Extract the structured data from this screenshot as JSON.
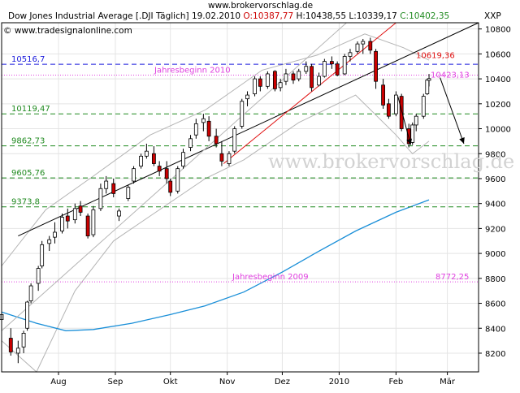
{
  "site_title": "www.brokervorschlag.de",
  "watermark": "www.brokervorschlag.de",
  "header": {
    "instrument": "Dow Jones Industrial Average [.DJI  Täglich] 19.02.2010",
    "open": "O:10387,77",
    "high": "H:10438,55",
    "low": "L:10339,17",
    "close": "C:10402,35",
    "source": "www.tradesignalonline.com",
    "copyright_symbol": "©"
  },
  "colors": {
    "background": "#ffffff",
    "grid": "#e4e4e4",
    "axis": "#000000",
    "candle_up": "#ffffff",
    "candle_down": "#cc0000",
    "candle_border": "#000000",
    "moving_average": "#1a8fd8",
    "bollinger": "#b4b4b4",
    "resistance_line": "#1a1adc",
    "support_line": "#1f8a1f",
    "start_line": "#e040e0",
    "trend_red": "#e01010",
    "trend_black": "#000000",
    "open_label": "#cc0000",
    "close_label": "#1f8a1f"
  },
  "chart_data": {
    "type": "candlestick",
    "title": "Dow Jones Industrial Average [.DJI Täglich]",
    "y_axis_label": "XXP",
    "y_axis_side": "right",
    "ylim": [
      8050,
      10850
    ],
    "y_ticks": [
      8200,
      8400,
      8600,
      8800,
      9000,
      9200,
      9400,
      9600,
      9800,
      10000,
      10200,
      10400,
      10600,
      10800
    ],
    "x_labels": [
      "Aug",
      "Sep",
      "Okt",
      "Nov",
      "Dez",
      "2010",
      "Feb",
      "Mär"
    ],
    "x_label_dates": [
      "2009-08-01",
      "2009-09-01",
      "2009-10-01",
      "2009-11-01",
      "2009-12-01",
      "2010-01-01",
      "2010-02-01",
      "2010-03-01"
    ],
    "x_range": [
      "2009-07-01",
      "2010-03-18"
    ],
    "grid": true,
    "candles": [
      {
        "date": "2009-07-01",
        "o": 8470,
        "h": 8550,
        "l": 8420,
        "c": 8510
      },
      {
        "date": "2009-07-06",
        "o": 8320,
        "h": 8400,
        "l": 8180,
        "c": 8210
      },
      {
        "date": "2009-07-10",
        "o": 8200,
        "h": 8300,
        "l": 8120,
        "c": 8240
      },
      {
        "date": "2009-07-13",
        "o": 8250,
        "h": 8380,
        "l": 8200,
        "c": 8360
      },
      {
        "date": "2009-07-15",
        "o": 8400,
        "h": 8620,
        "l": 8380,
        "c": 8610
      },
      {
        "date": "2009-07-17",
        "o": 8620,
        "h": 8760,
        "l": 8600,
        "c": 8740
      },
      {
        "date": "2009-07-21",
        "o": 8760,
        "h": 8900,
        "l": 8700,
        "c": 8880
      },
      {
        "date": "2009-07-23",
        "o": 8900,
        "h": 9100,
        "l": 8880,
        "c": 9070
      },
      {
        "date": "2009-07-27",
        "o": 9080,
        "h": 9140,
        "l": 9020,
        "c": 9110
      },
      {
        "date": "2009-07-30",
        "o": 9130,
        "h": 9250,
        "l": 9080,
        "c": 9170
      },
      {
        "date": "2009-08-03",
        "o": 9180,
        "h": 9320,
        "l": 9160,
        "c": 9290
      },
      {
        "date": "2009-08-06",
        "o": 9300,
        "h": 9360,
        "l": 9200,
        "c": 9260
      },
      {
        "date": "2009-08-10",
        "o": 9270,
        "h": 9400,
        "l": 9240,
        "c": 9360
      },
      {
        "date": "2009-08-13",
        "o": 9380,
        "h": 9420,
        "l": 9300,
        "c": 9330
      },
      {
        "date": "2009-08-17",
        "o": 9300,
        "h": 9320,
        "l": 9120,
        "c": 9140
      },
      {
        "date": "2009-08-20",
        "o": 9150,
        "h": 9380,
        "l": 9130,
        "c": 9350
      },
      {
        "date": "2009-08-24",
        "o": 9360,
        "h": 9560,
        "l": 9340,
        "c": 9520
      },
      {
        "date": "2009-08-27",
        "o": 9520,
        "h": 9620,
        "l": 9480,
        "c": 9580
      },
      {
        "date": "2009-08-31",
        "o": 9560,
        "h": 9600,
        "l": 9450,
        "c": 9480
      },
      {
        "date": "2009-09-03",
        "o": 9300,
        "h": 9360,
        "l": 9260,
        "c": 9340
      },
      {
        "date": "2009-09-08",
        "o": 9440,
        "h": 9550,
        "l": 9420,
        "c": 9530
      },
      {
        "date": "2009-09-11",
        "o": 9580,
        "h": 9700,
        "l": 9560,
        "c": 9680
      },
      {
        "date": "2009-09-15",
        "o": 9700,
        "h": 9800,
        "l": 9680,
        "c": 9780
      },
      {
        "date": "2009-09-18",
        "o": 9780,
        "h": 9880,
        "l": 9760,
        "c": 9820
      },
      {
        "date": "2009-09-22",
        "o": 9800,
        "h": 9860,
        "l": 9700,
        "c": 9720
      },
      {
        "date": "2009-09-25",
        "o": 9700,
        "h": 9740,
        "l": 9620,
        "c": 9660
      },
      {
        "date": "2009-09-29",
        "o": 9680,
        "h": 9740,
        "l": 9560,
        "c": 9600
      },
      {
        "date": "2009-10-01",
        "o": 9580,
        "h": 9600,
        "l": 9460,
        "c": 9490
      },
      {
        "date": "2009-10-05",
        "o": 9500,
        "h": 9700,
        "l": 9480,
        "c": 9680
      },
      {
        "date": "2009-10-08",
        "o": 9700,
        "h": 9840,
        "l": 9680,
        "c": 9810
      },
      {
        "date": "2009-10-12",
        "o": 9850,
        "h": 9950,
        "l": 9820,
        "c": 9920
      },
      {
        "date": "2009-10-15",
        "o": 9950,
        "h": 10080,
        "l": 9920,
        "c": 10040
      },
      {
        "date": "2009-10-19",
        "o": 10050,
        "h": 10120,
        "l": 9980,
        "c": 10080
      },
      {
        "date": "2009-10-22",
        "o": 10060,
        "h": 10100,
        "l": 9900,
        "c": 9940
      },
      {
        "date": "2009-10-26",
        "o": 9940,
        "h": 10000,
        "l": 9850,
        "c": 9880
      },
      {
        "date": "2009-10-29",
        "o": 9800,
        "h": 9900,
        "l": 9700,
        "c": 9740
      },
      {
        "date": "2009-11-02",
        "o": 9720,
        "h": 9820,
        "l": 9700,
        "c": 9800
      },
      {
        "date": "2009-11-05",
        "o": 9820,
        "h": 10020,
        "l": 9800,
        "c": 10000
      },
      {
        "date": "2009-11-09",
        "o": 10020,
        "h": 10240,
        "l": 10000,
        "c": 10220
      },
      {
        "date": "2009-11-12",
        "o": 10240,
        "h": 10300,
        "l": 10180,
        "c": 10270
      },
      {
        "date": "2009-11-16",
        "o": 10280,
        "h": 10420,
        "l": 10260,
        "c": 10400
      },
      {
        "date": "2009-11-19",
        "o": 10400,
        "h": 10420,
        "l": 10300,
        "c": 10340
      },
      {
        "date": "2009-11-23",
        "o": 10340,
        "h": 10460,
        "l": 10320,
        "c": 10440
      },
      {
        "date": "2009-11-27",
        "o": 10460,
        "h": 10470,
        "l": 10300,
        "c": 10320
      },
      {
        "date": "2009-11-30",
        "o": 10330,
        "h": 10400,
        "l": 10300,
        "c": 10370
      },
      {
        "date": "2009-12-03",
        "o": 10380,
        "h": 10480,
        "l": 10350,
        "c": 10440
      },
      {
        "date": "2009-12-07",
        "o": 10440,
        "h": 10460,
        "l": 10360,
        "c": 10390
      },
      {
        "date": "2009-12-10",
        "o": 10400,
        "h": 10480,
        "l": 10380,
        "c": 10460
      },
      {
        "date": "2009-12-14",
        "o": 10460,
        "h": 10540,
        "l": 10440,
        "c": 10500
      },
      {
        "date": "2009-12-17",
        "o": 10500,
        "h": 10520,
        "l": 10300,
        "c": 10330
      },
      {
        "date": "2009-12-21",
        "o": 10350,
        "h": 10450,
        "l": 10340,
        "c": 10420
      },
      {
        "date": "2009-12-24",
        "o": 10420,
        "h": 10560,
        "l": 10410,
        "c": 10540
      },
      {
        "date": "2009-12-28",
        "o": 10540,
        "h": 10580,
        "l": 10480,
        "c": 10520
      },
      {
        "date": "2009-12-31",
        "o": 10520,
        "h": 10540,
        "l": 10420,
        "c": 10430
      },
      {
        "date": "2010-01-04",
        "o": 10440,
        "h": 10600,
        "l": 10430,
        "c": 10580
      },
      {
        "date": "2010-01-07",
        "o": 10580,
        "h": 10640,
        "l": 10540,
        "c": 10610
      },
      {
        "date": "2010-01-11",
        "o": 10620,
        "h": 10700,
        "l": 10600,
        "c": 10680
      },
      {
        "date": "2010-01-14",
        "o": 10680,
        "h": 10720,
        "l": 10600,
        "c": 10700
      },
      {
        "date": "2010-01-18",
        "o": 10700,
        "h": 10730,
        "l": 10600,
        "c": 10630
      },
      {
        "date": "2010-01-21",
        "o": 10620,
        "h": 10640,
        "l": 10320,
        "c": 10380
      },
      {
        "date": "2010-01-25",
        "o": 10350,
        "h": 10400,
        "l": 10160,
        "c": 10190
      },
      {
        "date": "2010-01-28",
        "o": 10200,
        "h": 10240,
        "l": 10080,
        "c": 10100
      },
      {
        "date": "2010-02-01",
        "o": 10120,
        "h": 10300,
        "l": 10100,
        "c": 10270
      },
      {
        "date": "2010-02-04",
        "o": 10260,
        "h": 10280,
        "l": 9980,
        "c": 10000
      },
      {
        "date": "2010-02-08",
        "o": 10000,
        "h": 10040,
        "l": 9850,
        "c": 9880
      },
      {
        "date": "2010-02-10",
        "o": 9890,
        "h": 10050,
        "l": 9870,
        "c": 10030
      },
      {
        "date": "2010-02-12",
        "o": 10030,
        "h": 10120,
        "l": 9980,
        "c": 10100
      },
      {
        "date": "2010-02-16",
        "o": 10100,
        "h": 10280,
        "l": 10080,
        "c": 10260
      },
      {
        "date": "2010-02-18",
        "o": 10280,
        "h": 10400,
        "l": 10270,
        "c": 10390
      },
      {
        "date": "2010-02-19",
        "o": 10388,
        "h": 10439,
        "l": 10339,
        "c": 10402
      }
    ],
    "moving_average": [
      {
        "date": "2009-07-01",
        "v": 8530
      },
      {
        "date": "2009-07-20",
        "v": 8440
      },
      {
        "date": "2009-08-05",
        "v": 8380
      },
      {
        "date": "2009-08-20",
        "v": 8390
      },
      {
        "date": "2009-09-10",
        "v": 8440
      },
      {
        "date": "2009-10-01",
        "v": 8510
      },
      {
        "date": "2009-10-20",
        "v": 8580
      },
      {
        "date": "2009-11-10",
        "v": 8690
      },
      {
        "date": "2009-12-01",
        "v": 8850
      },
      {
        "date": "2009-12-20",
        "v": 9010
      },
      {
        "date": "2010-01-10",
        "v": 9180
      },
      {
        "date": "2010-02-01",
        "v": 9330
      },
      {
        "date": "2010-02-19",
        "v": 9430
      }
    ],
    "bollinger_upper": [
      {
        "date": "2009-07-01",
        "v": 8900
      },
      {
        "date": "2009-07-25",
        "v": 9350
      },
      {
        "date": "2009-08-20",
        "v": 9620
      },
      {
        "date": "2009-09-20",
        "v": 9950
      },
      {
        "date": "2009-10-20",
        "v": 10150
      },
      {
        "date": "2009-11-20",
        "v": 10470
      },
      {
        "date": "2009-12-20",
        "v": 10590
      },
      {
        "date": "2010-01-15",
        "v": 10760
      },
      {
        "date": "2010-02-05",
        "v": 10650
      },
      {
        "date": "2010-02-19",
        "v": 10550
      }
    ],
    "bollinger_lower": [
      {
        "date": "2009-07-01",
        "v": 8300
      },
      {
        "date": "2009-07-20",
        "v": 8050
      },
      {
        "date": "2009-08-10",
        "v": 8700
      },
      {
        "date": "2009-08-31",
        "v": 9100
      },
      {
        "date": "2009-09-20",
        "v": 9300
      },
      {
        "date": "2009-10-20",
        "v": 9600
      },
      {
        "date": "2009-11-10",
        "v": 9750
      },
      {
        "date": "2009-12-10",
        "v": 10050
      },
      {
        "date": "2010-01-10",
        "v": 10270
      },
      {
        "date": "2010-02-01",
        "v": 9950
      },
      {
        "date": "2010-02-10",
        "v": 9800
      },
      {
        "date": "2010-02-19",
        "v": 9900
      }
    ],
    "horizontal_lines": [
      {
        "label": "10516,7",
        "value": 10516.7,
        "style": "resistance",
        "label_side": "left"
      },
      {
        "label": "10119,47",
        "value": 10119.47,
        "style": "support",
        "label_side": "left"
      },
      {
        "label": "9862,73",
        "value": 9862.73,
        "style": "support",
        "label_side": "left"
      },
      {
        "label": "9605,76",
        "value": 9605.76,
        "style": "support",
        "label_side": "left"
      },
      {
        "label": "9373,8",
        "value": 9373.8,
        "style": "support",
        "label_side": "left"
      },
      {
        "label": "Jahresbeginn 2010",
        "value": 10430,
        "style": "start",
        "label_side": "center"
      },
      {
        "label": "Jahresbeginn 2009",
        "value": 8772.25,
        "style": "start",
        "label_side": "center"
      }
    ],
    "value_labels": [
      {
        "text": "10619,36",
        "value": 10619.36,
        "color": "trend_red"
      },
      {
        "text": "10423,13",
        "value": 10423.13,
        "color": "start_line"
      },
      {
        "text": "8772,25",
        "value": 8772.25,
        "color": "start_line"
      }
    ],
    "trend_lines": [
      {
        "color": "trend_black",
        "from": {
          "date": "2009-07-10",
          "v": 9140
        },
        "to": {
          "date": "2010-03-18",
          "v": 10850
        }
      },
      {
        "color": "bollinger",
        "from": {
          "date": "2009-07-01",
          "v": 8380
        },
        "to": {
          "date": "2010-01-05",
          "v": 10850
        }
      },
      {
        "color": "trend_red",
        "from": {
          "date": "2009-10-30",
          "v": 9720
        },
        "to": {
          "date": "2010-02-01",
          "v": 10850
        }
      }
    ],
    "arrows": [
      {
        "from": {
          "date": "2010-02-02",
          "v": 10260
        },
        "to": {
          "date": "2010-02-09",
          "v": 9870
        }
      },
      {
        "from": {
          "date": "2010-02-25",
          "v": 10410
        },
        "to": {
          "date": "2010-03-10",
          "v": 9880
        }
      }
    ]
  }
}
